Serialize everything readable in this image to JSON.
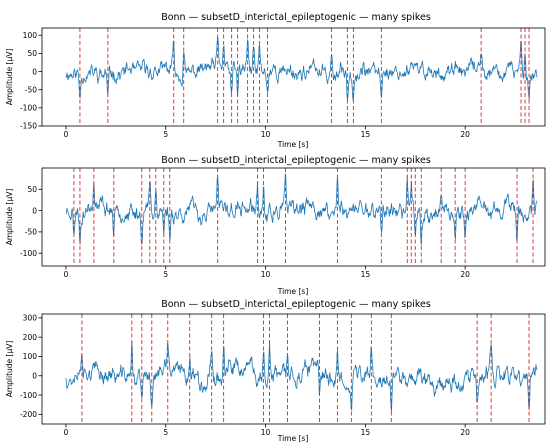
{
  "chart_data": [
    {
      "type": "line",
      "title": "Bonn — subsetD_interictal_epileptogenic — many spikes",
      "xlabel": "Time [s]",
      "ylabel": "Amplitude [µV]",
      "xlim": [
        -1.2,
        24.0
      ],
      "ylim": [
        -150,
        120
      ],
      "xticks": [
        0,
        5,
        10,
        15,
        20
      ],
      "yticks": [
        -150,
        -100,
        -50,
        0,
        50,
        100
      ],
      "duration": 23.6,
      "seed": 11,
      "noise_amp": 32,
      "series_color": "#1f77b4",
      "spike_color": "#d62728",
      "spike_style": "dashed",
      "spike_times": [
        0.7,
        2.1,
        5.4,
        5.9,
        7.6,
        7.9,
        8.3,
        8.6,
        9.1,
        9.4,
        9.7,
        10.1,
        13.3,
        14.1,
        14.4,
        15.8,
        20.8,
        22.8,
        23.0,
        23.2
      ]
    },
    {
      "type": "line",
      "title": "Bonn — subsetD_interictal_epileptogenic — many spikes",
      "xlabel": "Time [s]",
      "ylabel": "Amplitude [µV]",
      "xlim": [
        -1.2,
        24.0
      ],
      "ylim": [
        -130,
        100
      ],
      "xticks": [
        0,
        5,
        10,
        15,
        20
      ],
      "yticks": [
        -100,
        -50,
        0,
        50
      ],
      "duration": 23.6,
      "seed": 23,
      "noise_amp": 30,
      "series_color": "#1f77b4",
      "spike_color": "#d62728",
      "spike_style": "dashed",
      "spike_times": [
        0.4,
        0.7,
        1.4,
        2.4,
        3.8,
        4.2,
        4.5,
        4.9,
        5.2,
        7.6,
        9.6,
        9.9,
        11.0,
        13.6,
        15.8,
        17.1,
        17.3,
        17.5,
        17.8,
        18.8,
        19.5,
        20.0,
        22.6,
        23.4
      ]
    },
    {
      "type": "line",
      "title": "Bonn — subsetD_interictal_epileptogenic — many spikes",
      "xlabel": "Time [s]",
      "ylabel": "Amplitude [µV]",
      "xlim": [
        -1.2,
        24.0
      ],
      "ylim": [
        -250,
        320
      ],
      "xticks": [
        0,
        5,
        10,
        15,
        20
      ],
      "yticks": [
        -200,
        -100,
        0,
        100,
        200,
        300
      ],
      "duration": 23.6,
      "seed": 37,
      "noise_amp": 70,
      "series_color": "#1f77b4",
      "spike_color": "#d62728",
      "spike_style": "dashed",
      "spike_times": [
        0.8,
        3.3,
        3.8,
        4.3,
        5.1,
        6.2,
        7.3,
        7.9,
        9.9,
        10.2,
        11.1,
        12.7,
        13.6,
        14.3,
        15.3,
        16.3,
        20.6,
        21.3,
        23.2
      ]
    }
  ]
}
